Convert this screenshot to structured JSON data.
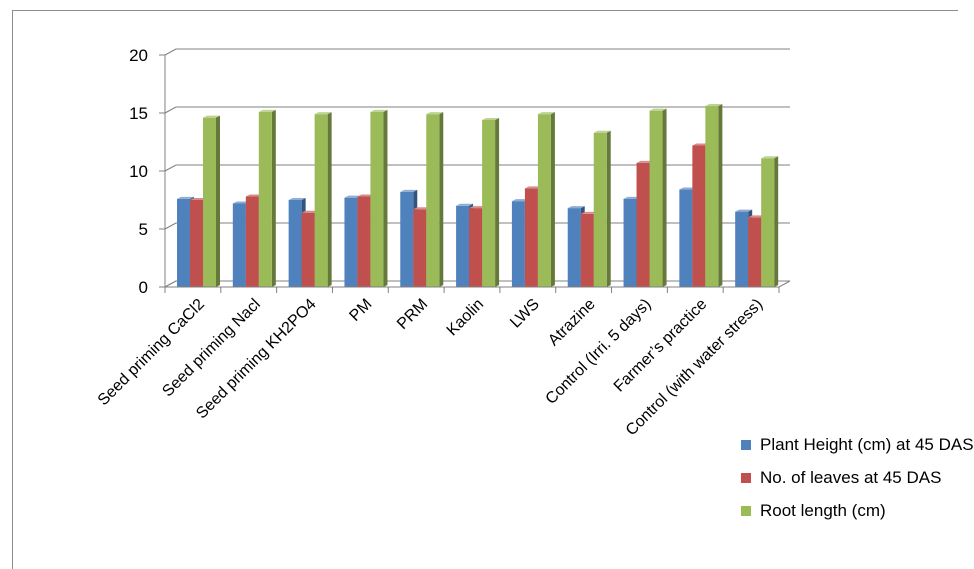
{
  "chart_data": {
    "type": "bar",
    "style": "3d-clustered-column",
    "title": "",
    "xlabel": "",
    "ylabel": "",
    "ylim": [
      0,
      20
    ],
    "yticks": [
      0,
      5,
      10,
      15,
      20
    ],
    "grid": true,
    "legend_position": "bottom-right",
    "categories": [
      "Seed priming CaCl2",
      "Seed priming Nacl",
      "Seed priming KH2PO4",
      "PM",
      "PRM",
      "Kaolin",
      "LWS",
      "Atrazine",
      "Control (Irri. 5 days)",
      "Farmer’s practice",
      "Control (with water stress)"
    ],
    "series": [
      {
        "name": "Plant Height (cm) at 45 DAS",
        "color": "#4f81bd",
        "values": [
          7.6,
          7.2,
          7.5,
          7.7,
          8.2,
          7.0,
          7.4,
          6.8,
          7.6,
          8.4,
          6.5
        ]
      },
      {
        "name": "No. of leaves at 45 DAS",
        "color": "#c0504d",
        "values": [
          7.5,
          7.8,
          6.4,
          7.8,
          6.7,
          6.8,
          8.5,
          6.3,
          10.7,
          12.2,
          6.0
        ]
      },
      {
        "name": "Root length (cm)",
        "color": "#9bbb59",
        "values": [
          14.6,
          15.1,
          14.9,
          15.1,
          14.9,
          14.4,
          14.9,
          13.3,
          15.2,
          15.6,
          11.1
        ]
      }
    ]
  }
}
